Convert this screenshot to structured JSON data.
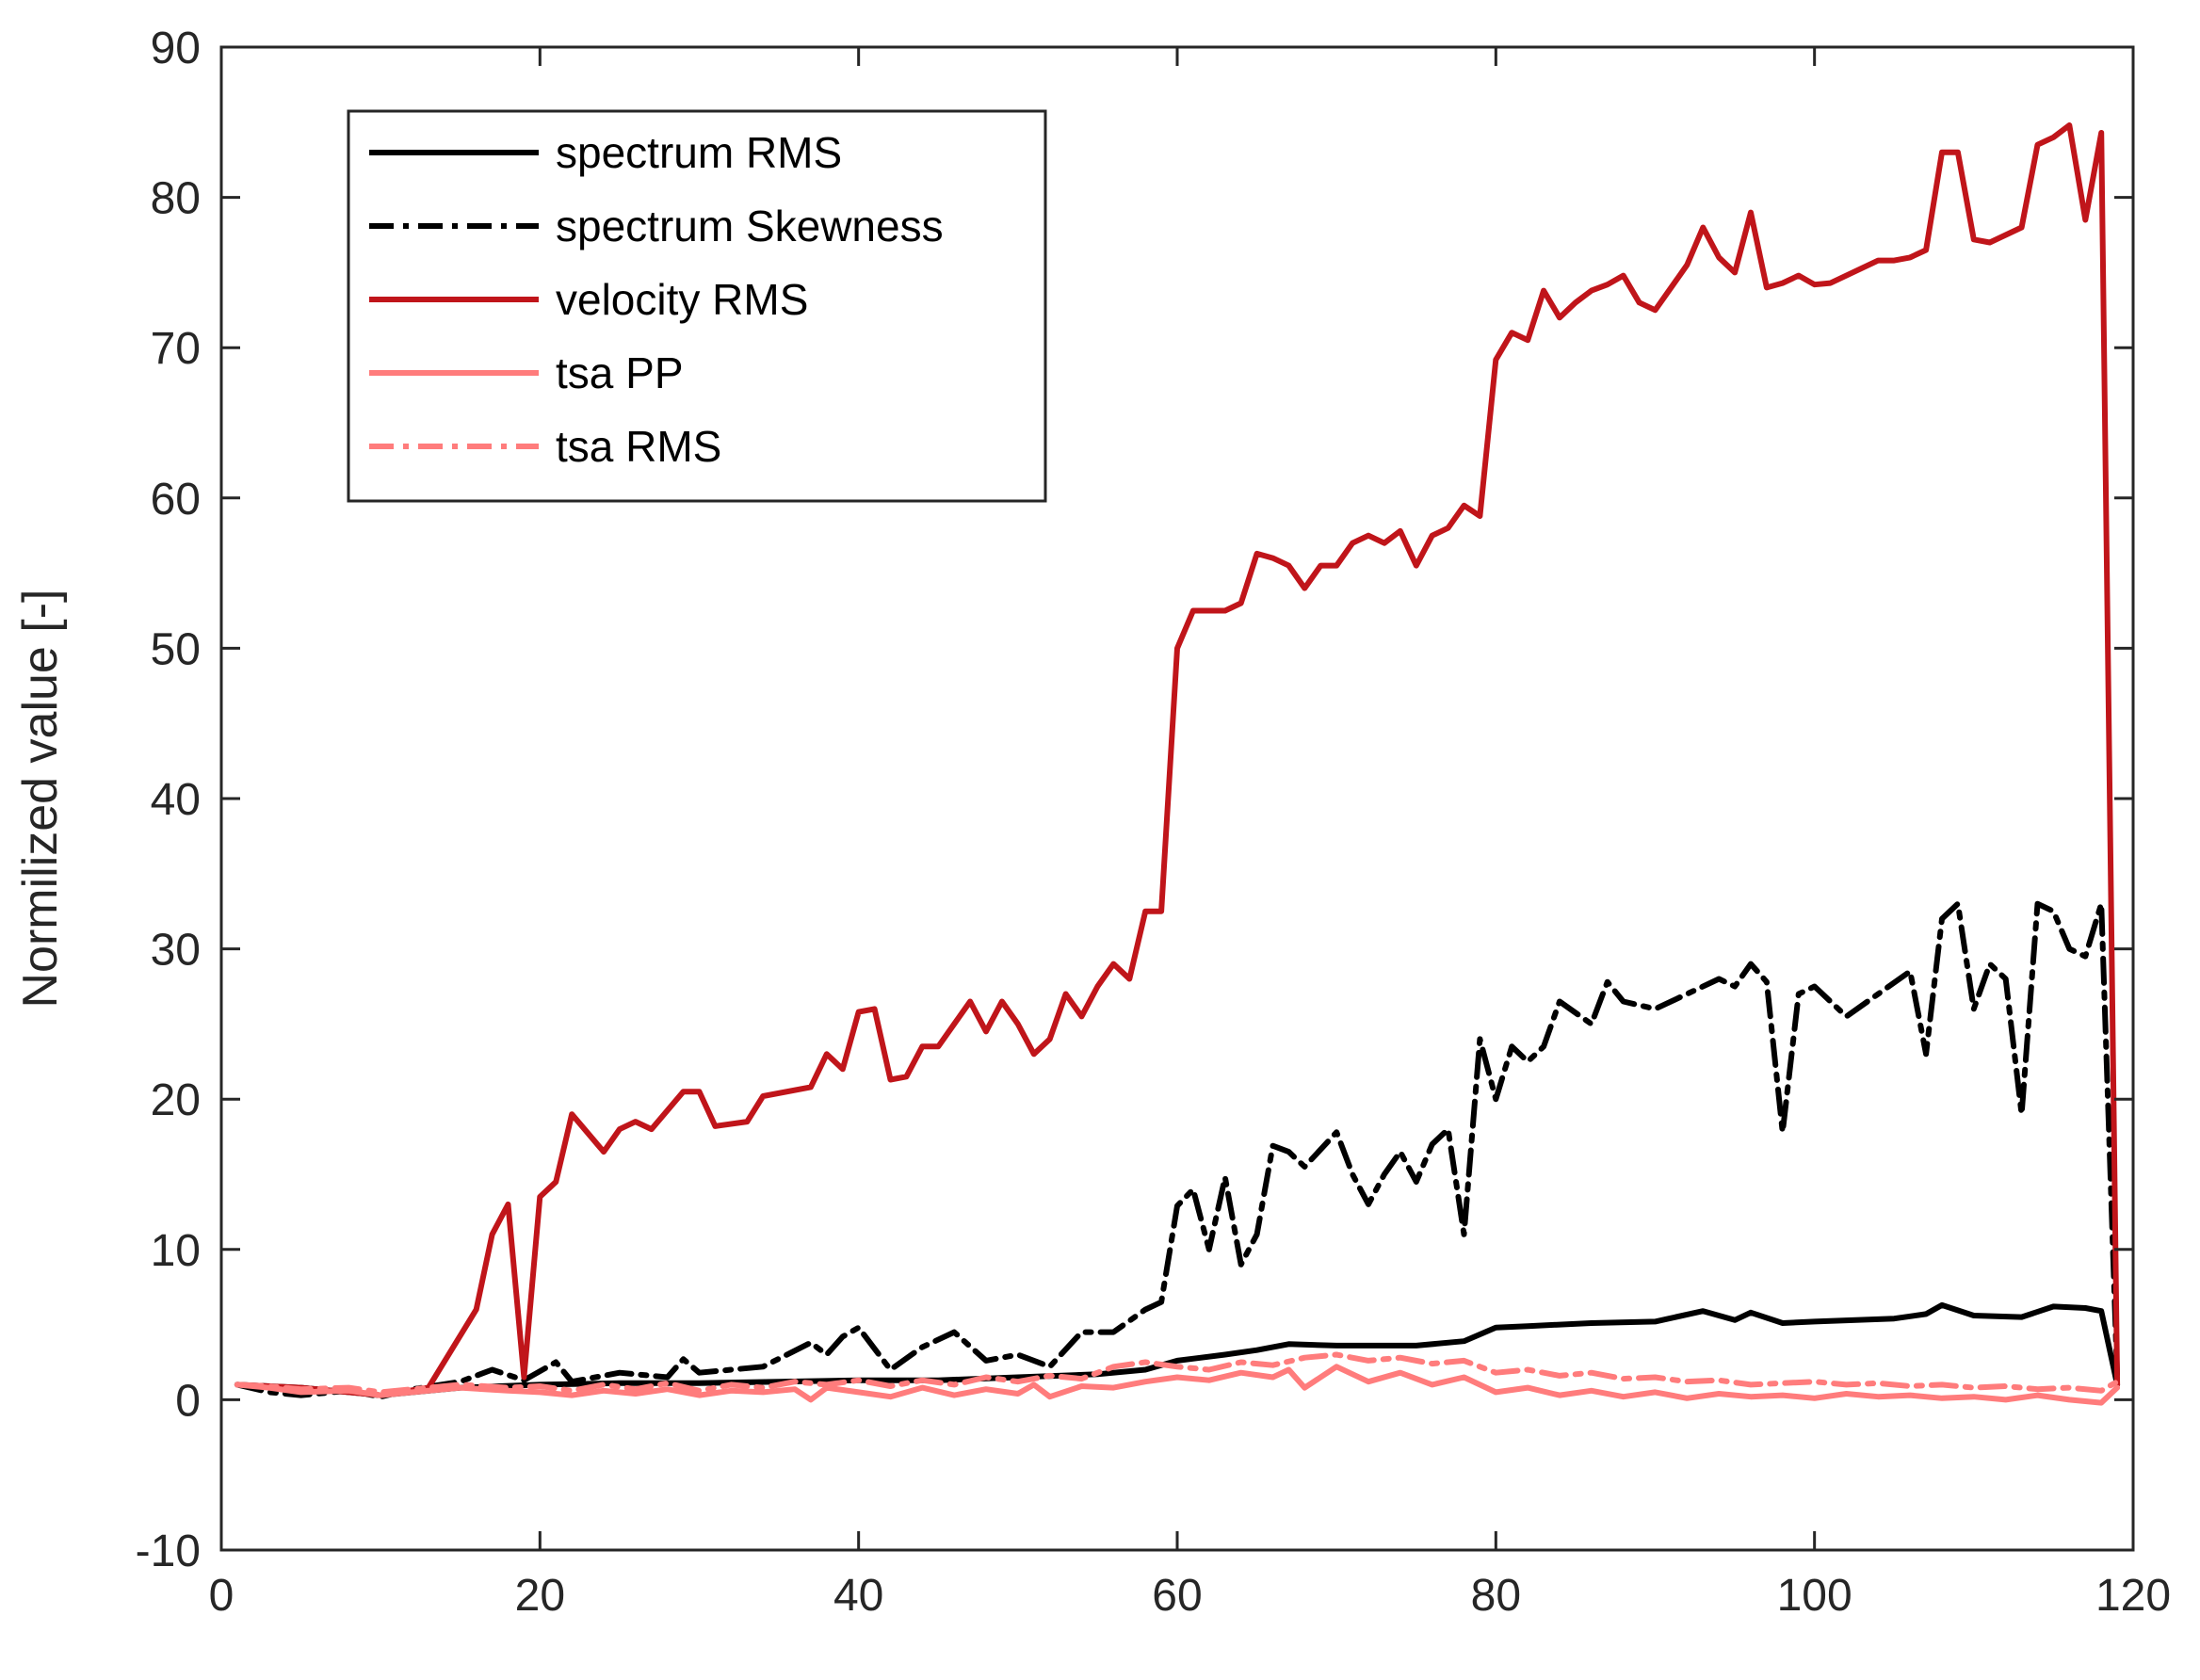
{
  "chart_data": {
    "type": "line",
    "title": "",
    "xlabel": "",
    "ylabel": "Normilized value [-]",
    "xlim": [
      0,
      120
    ],
    "ylim": [
      -10,
      90
    ],
    "xticks": [
      "0",
      "20",
      "40",
      "60",
      "80",
      "100",
      "120"
    ],
    "yticks": [
      "-10",
      "0",
      "10",
      "20",
      "30",
      "40",
      "50",
      "60",
      "70",
      "80",
      "90"
    ],
    "grid": false,
    "legend_position": "top-left",
    "series": [
      {
        "name": "spectrum RMS",
        "color": "#000000",
        "style": "solid",
        "x": [
          1,
          5,
          10,
          15,
          20,
          25,
          30,
          35,
          40,
          45,
          50,
          55,
          58,
          60,
          63,
          65,
          67,
          70,
          75,
          78,
          80,
          82,
          84,
          86,
          90,
          93,
          95,
          96,
          98,
          100,
          105,
          107,
          108,
          110,
          113,
          115,
          117,
          118,
          119
        ],
        "y": [
          1.0,
          0.8,
          0.3,
          0.8,
          1.0,
          1.1,
          1.1,
          1.2,
          1.3,
          1.3,
          1.5,
          1.7,
          2.0,
          2.6,
          3.0,
          3.3,
          3.7,
          3.6,
          3.6,
          3.9,
          4.8,
          4.9,
          5.0,
          5.1,
          5.2,
          5.9,
          5.3,
          5.8,
          5.1,
          5.2,
          5.4,
          5.7,
          6.3,
          5.6,
          5.5,
          6.2,
          6.1,
          5.9,
          1.0
        ]
      },
      {
        "name": "spectrum Skewness",
        "color": "#000000",
        "style": "dashdot",
        "x": [
          1,
          3,
          5,
          8,
          10,
          12,
          15,
          17,
          19,
          21,
          22,
          25,
          28,
          29,
          30,
          34,
          37,
          38,
          39,
          40,
          42,
          44,
          46,
          48,
          50,
          52,
          54,
          56,
          58,
          59,
          60,
          61,
          62,
          63,
          64,
          65,
          66,
          67,
          68,
          70,
          71,
          72,
          73,
          74,
          75,
          76,
          77,
          78,
          79,
          80,
          81,
          82,
          83,
          84,
          86,
          87,
          88,
          90,
          92,
          94,
          95,
          96,
          97,
          98,
          99,
          100,
          102,
          104,
          106,
          107,
          108,
          109,
          110,
          111,
          112,
          113,
          114,
          115,
          116,
          117,
          118,
          119
        ],
        "y": [
          1.0,
          0.5,
          0.3,
          0.6,
          0.2,
          0.7,
          1.2,
          2.0,
          1.3,
          2.5,
          1.2,
          1.8,
          1.5,
          2.7,
          1.8,
          2.2,
          3.8,
          3.0,
          4.2,
          4.8,
          2.0,
          3.5,
          4.5,
          2.6,
          3.0,
          2.2,
          4.5,
          4.5,
          6.0,
          6.5,
          12.9,
          14.0,
          10.0,
          14.8,
          9.0,
          11.0,
          16.9,
          16.5,
          15.5,
          17.8,
          15.0,
          13.0,
          15.0,
          16.5,
          14.5,
          17.0,
          18.0,
          11.0,
          24.0,
          20.0,
          23.5,
          22.5,
          23.5,
          26.5,
          25.0,
          27.8,
          26.5,
          26.0,
          27.0,
          28.0,
          27.5,
          29.0,
          27.8,
          17.8,
          27.0,
          27.5,
          25.5,
          27.0,
          28.5,
          23.0,
          32.0,
          33.0,
          26.0,
          29.0,
          28.0,
          19.0,
          33.0,
          32.5,
          30.0,
          29.5,
          33.0,
          1.5
        ]
      },
      {
        "name": "velocity RMS",
        "color": "#c0151a",
        "style": "solid",
        "x": [
          1,
          5,
          10,
          13,
          16,
          17,
          18,
          19,
          20,
          21,
          22,
          24,
          25,
          26,
          27,
          29,
          30,
          31,
          33,
          34,
          37,
          38,
          39,
          40,
          41,
          42,
          43,
          44,
          45,
          46,
          47,
          48,
          49,
          50,
          51,
          52,
          53,
          54,
          55,
          56,
          57,
          58,
          59,
          60,
          61,
          62,
          63,
          64,
          65,
          66,
          67,
          68,
          69,
          70,
          71,
          72,
          73,
          74,
          75,
          76,
          77,
          78,
          79,
          80,
          81,
          82,
          83,
          84,
          85,
          86,
          87,
          88,
          89,
          90,
          91,
          92,
          93,
          94,
          95,
          96,
          97,
          98,
          99,
          100,
          101,
          102,
          103,
          104,
          105,
          106,
          107,
          108,
          109,
          110,
          111,
          112,
          113,
          114,
          115,
          116,
          117,
          118,
          119
        ],
        "y": [
          1.0,
          0.8,
          0.3,
          0.8,
          6.0,
          11.0,
          13.0,
          1.5,
          13.5,
          14.5,
          19.0,
          16.5,
          18.0,
          18.5,
          18.0,
          20.5,
          20.5,
          18.2,
          18.5,
          20.2,
          20.8,
          23.0,
          22.0,
          25.8,
          26.0,
          21.3,
          21.5,
          23.5,
          23.5,
          25.0,
          26.5,
          24.5,
          26.5,
          25.0,
          23.0,
          24.0,
          27.0,
          25.5,
          27.5,
          29.0,
          28.0,
          32.5,
          32.5,
          50.0,
          52.5,
          52.5,
          52.5,
          53.0,
          56.3,
          56.0,
          55.5,
          54.0,
          55.5,
          55.5,
          57.0,
          57.5,
          57.0,
          57.8,
          55.5,
          57.5,
          58.0,
          59.5,
          58.8,
          69.2,
          71.0,
          70.5,
          73.8,
          72.0,
          73.0,
          73.8,
          74.2,
          74.8,
          73.0,
          72.5,
          74.0,
          75.5,
          78.0,
          76.0,
          75.0,
          79.0,
          74.0,
          74.3,
          74.8,
          74.2,
          74.3,
          74.8,
          75.3,
          75.8,
          75.8,
          76.0,
          76.5,
          83.0,
          83.0,
          77.2,
          77.0,
          77.5,
          78.0,
          83.5,
          84.0,
          84.8,
          78.5,
          84.3,
          1.0
        ]
      },
      {
        "name": "tsa PP",
        "color": "#ff7c7c",
        "style": "solid",
        "x": [
          1,
          3,
          5,
          8,
          10,
          12,
          15,
          18,
          20,
          22,
          24,
          26,
          28,
          30,
          32,
          34,
          36,
          37,
          38,
          40,
          42,
          44,
          46,
          48,
          50,
          51,
          52,
          54,
          56,
          58,
          60,
          62,
          64,
          66,
          67,
          68,
          70,
          72,
          74,
          76,
          78,
          80,
          82,
          84,
          86,
          88,
          90,
          92,
          94,
          96,
          98,
          100,
          102,
          104,
          106,
          108,
          110,
          112,
          114,
          116,
          118,
          119
        ],
        "y": [
          1.0,
          0.8,
          0.5,
          0.6,
          0.3,
          0.5,
          0.8,
          0.6,
          0.5,
          0.3,
          0.6,
          0.4,
          0.7,
          0.3,
          0.6,
          0.5,
          0.7,
          0.0,
          0.8,
          0.5,
          0.2,
          0.8,
          0.3,
          0.7,
          0.4,
          1.0,
          0.2,
          0.9,
          0.8,
          1.2,
          1.5,
          1.3,
          1.8,
          1.5,
          2.0,
          0.8,
          2.2,
          1.2,
          1.8,
          1.0,
          1.5,
          0.5,
          0.8,
          0.3,
          0.6,
          0.2,
          0.5,
          0.1,
          0.4,
          0.2,
          0.3,
          0.1,
          0.4,
          0.2,
          0.3,
          0.1,
          0.2,
          0.0,
          0.3,
          0.0,
          -0.2,
          0.8
        ]
      },
      {
        "name": "tsa RMS",
        "color": "#ff7c7c",
        "style": "dashdot",
        "x": [
          1,
          3,
          5,
          8,
          10,
          12,
          15,
          18,
          20,
          22,
          24,
          26,
          28,
          30,
          32,
          34,
          36,
          38,
          40,
          42,
          44,
          46,
          48,
          50,
          52,
          54,
          56,
          58,
          60,
          62,
          64,
          66,
          68,
          70,
          72,
          74,
          76,
          78,
          80,
          82,
          84,
          86,
          88,
          90,
          92,
          94,
          96,
          98,
          100,
          102,
          104,
          106,
          108,
          110,
          112,
          114,
          116,
          118,
          119
        ],
        "y": [
          1.0,
          0.9,
          0.7,
          0.8,
          0.5,
          0.7,
          1.0,
          0.8,
          0.9,
          0.6,
          1.0,
          0.7,
          1.1,
          0.6,
          1.0,
          0.8,
          1.2,
          1.0,
          1.3,
          0.9,
          1.3,
          1.0,
          1.5,
          1.2,
          1.6,
          1.4,
          2.2,
          2.5,
          2.2,
          2.0,
          2.5,
          2.3,
          2.8,
          3.0,
          2.6,
          2.8,
          2.4,
          2.6,
          1.8,
          2.0,
          1.6,
          1.8,
          1.4,
          1.5,
          1.2,
          1.3,
          1.0,
          1.1,
          1.2,
          1.0,
          1.1,
          0.9,
          1.0,
          0.8,
          0.9,
          0.7,
          0.8,
          0.6,
          1.2
        ]
      }
    ]
  }
}
